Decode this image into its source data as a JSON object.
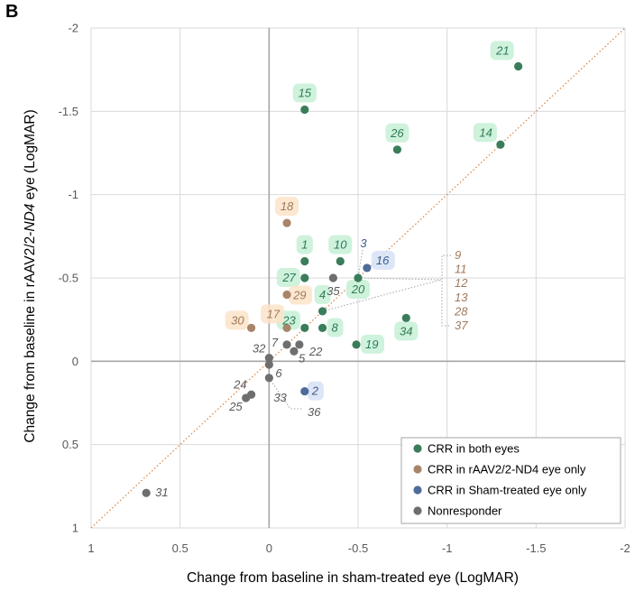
{
  "panel_label": "B",
  "chart_data": {
    "type": "scatter",
    "title": "",
    "xlabel": "Change from baseline in sham-treated eye (LogMAR)",
    "ylabel_parts": [
      "Change from baseline in rAAV2/2-",
      "ND4",
      " eye (LogMAR)"
    ],
    "xlim": [
      1,
      -2
    ],
    "ylim": [
      1,
      -2
    ],
    "x_ticks": [
      1,
      0.5,
      0,
      -0.5,
      -1,
      -1.5,
      -2
    ],
    "y_ticks": [
      -2,
      -1.5,
      -1,
      -0.5,
      0,
      0.5,
      1
    ],
    "x_tick_labels": [
      "1",
      "0.5",
      "0",
      "-0.5",
      "-1",
      "-1.5",
      "-2"
    ],
    "y_tick_labels": [
      "-2",
      "-1.5",
      "-1",
      "-0.5",
      "0",
      "0.5",
      "1"
    ],
    "grid": true,
    "identity_line": true,
    "legend_position": "bottom-right",
    "colors": {
      "both": "#3a7d5a",
      "nd4": "#a8856a",
      "sham": "#4f6b9a",
      "non": "#6e6e6e",
      "halo_both": "#c6f0d6",
      "halo_nd4": "#fbe3c8",
      "halo_sham": "#d6e2f4",
      "label_both": "#2f7a56",
      "label_nd4": "#a07a5c",
      "label_sham": "#3f5d8f",
      "label_non": "#595959",
      "diagonal": "#d98a4e",
      "grid": "#d9d9d9",
      "zero_axis": "#a6a6a6",
      "leader": "#a6a6a6"
    },
    "legend": [
      {
        "group": "both",
        "label": "CRR in both eyes"
      },
      {
        "group": "nd4",
        "label": "CRR in rAAV2/2-ND4 eye only"
      },
      {
        "group": "sham",
        "label": "CRR in Sham-treated eye only"
      },
      {
        "group": "non",
        "label": "Nonresponder"
      }
    ],
    "series": [
      {
        "group": "both",
        "points": [
          {
            "id": "21",
            "x": -1.4,
            "y": -1.77
          },
          {
            "id": "15",
            "x": -0.2,
            "y": -1.51
          },
          {
            "id": "14",
            "x": -1.3,
            "y": -1.3
          },
          {
            "id": "26",
            "x": -0.72,
            "y": -1.27
          },
          {
            "id": "1",
            "x": -0.2,
            "y": -0.6
          },
          {
            "id": "10",
            "x": -0.4,
            "y": -0.6
          },
          {
            "id": "27",
            "x": -0.2,
            "y": -0.5
          },
          {
            "id": "20",
            "x": -0.5,
            "y": -0.5
          },
          {
            "id": "4",
            "x": -0.3,
            "y": -0.3
          },
          {
            "id": "34",
            "x": -0.77,
            "y": -0.26
          },
          {
            "id": "23",
            "x": -0.2,
            "y": -0.2
          },
          {
            "id": "8",
            "x": -0.3,
            "y": -0.2
          },
          {
            "id": "19",
            "x": -0.49,
            "y": -0.1
          }
        ]
      },
      {
        "group": "nd4",
        "points": [
          {
            "id": "18",
            "x": -0.1,
            "y": -0.83
          },
          {
            "id": "29",
            "x": -0.1,
            "y": -0.4
          },
          {
            "id": "30",
            "x": 0.1,
            "y": -0.2
          },
          {
            "id": "17",
            "x": -0.1,
            "y": -0.2
          }
        ]
      },
      {
        "group": "sham",
        "points": [
          {
            "id": "16",
            "x": -0.55,
            "y": -0.56
          },
          {
            "id": "2",
            "x": -0.2,
            "y": 0.18
          }
        ]
      },
      {
        "group": "non",
        "points": [
          {
            "id": "35",
            "x": -0.36,
            "y": -0.5
          },
          {
            "id": "7",
            "x": -0.1,
            "y": -0.1
          },
          {
            "id": "22",
            "x": -0.17,
            "y": -0.1
          },
          {
            "id": "5",
            "x": -0.14,
            "y": -0.06
          },
          {
            "id": "32",
            "x": 0.0,
            "y": -0.02
          },
          {
            "id": "6",
            "x": 0.0,
            "y": 0.02
          },
          {
            "id": "33",
            "x": 0.0,
            "y": 0.1
          },
          {
            "id": "24",
            "x": 0.1,
            "y": 0.2
          },
          {
            "id": "25",
            "x": 0.13,
            "y": 0.22
          },
          {
            "id": "31",
            "x": 0.69,
            "y": 0.79
          }
        ]
      }
    ],
    "annotations": {
      "group_label": {
        "ids": [
          "9",
          "11",
          "12",
          "13",
          "28",
          "37"
        ],
        "points_to_id": "20"
      },
      "leader_36": {
        "id": "36",
        "points_to_id": "33"
      }
    }
  }
}
